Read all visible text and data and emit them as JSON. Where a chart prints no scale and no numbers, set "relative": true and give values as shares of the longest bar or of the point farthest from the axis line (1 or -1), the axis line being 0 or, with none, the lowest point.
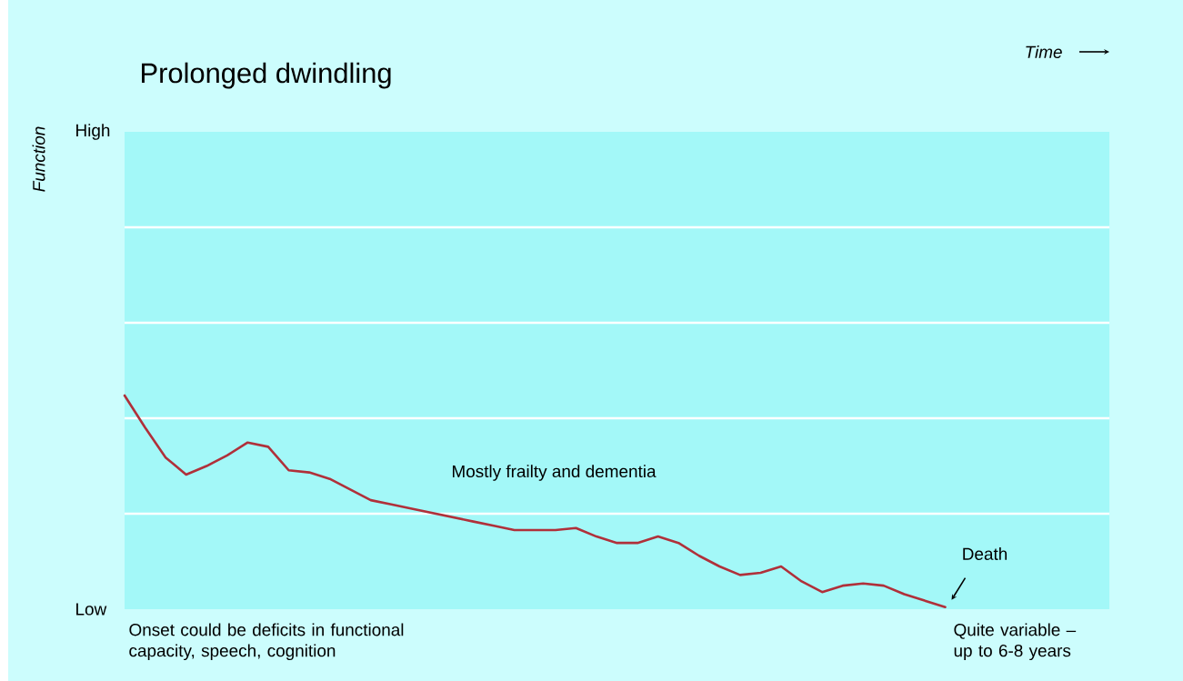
{
  "chart_data": {
    "type": "line",
    "title": "Prolonged dwindling",
    "relative": true,
    "marker": "none",
    "line_style": "solid",
    "categories": [
      null,
      null,
      null,
      null,
      null,
      null,
      null,
      null,
      null,
      null,
      null,
      null,
      null,
      null,
      null,
      null,
      null,
      null,
      null,
      null,
      null,
      null,
      null,
      null,
      null,
      null,
      null,
      null,
      null,
      null,
      null,
      null,
      null,
      null,
      null,
      null,
      null,
      null,
      null,
      null,
      null,
      null,
      null,
      null,
      null,
      null,
      null,
      null,
      null
    ],
    "series": [
      {
        "color": "#b0303a",
        "values": [
          1.0,
          0.85,
          0.71,
          0.63,
          0.67,
          0.72,
          0.78,
          0.76,
          0.65,
          0.64,
          0.61,
          0.56,
          0.51,
          0.49,
          0.47,
          0.45,
          0.43,
          0.41,
          0.39,
          0.37,
          0.37,
          0.37,
          0.38,
          0.34,
          0.31,
          0.31,
          0.34,
          0.31,
          0.25,
          0.2,
          0.16,
          0.17,
          0.2,
          0.13,
          0.08,
          0.11,
          0.12,
          0.11,
          0.07,
          0.04,
          0.01,
          null,
          null,
          null,
          null,
          null,
          null,
          null,
          null
        ]
      }
    ],
    "ref_lines": [
      {
        "axis": "y",
        "value": 0.447,
        "color": "#ffffff"
      },
      {
        "axis": "y",
        "value": 0.894,
        "color": "#ffffff"
      },
      {
        "axis": "y",
        "value": 1.34,
        "color": "#ffffff"
      },
      {
        "axis": "y",
        "value": 1.787,
        "color": "#ffffff"
      }
    ],
    "annotations": [
      "High",
      "Low",
      "Mostly frailty and dementia",
      "Death",
      "Onset could be deficits in functional capacity, speech, cognition",
      "Quite variable – up to 6-8 years",
      "Function",
      "Time"
    ]
  }
}
